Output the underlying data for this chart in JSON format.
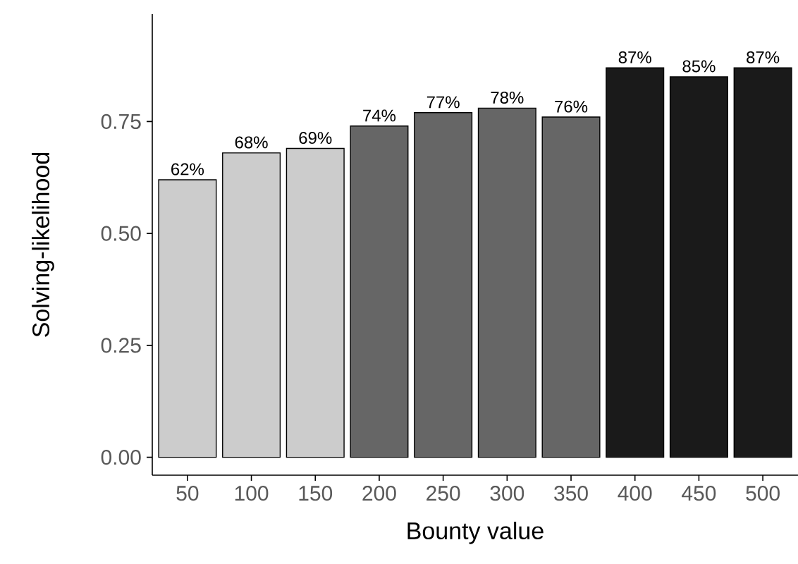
{
  "chart_data": {
    "type": "bar",
    "xlabel": "Bounty value",
    "ylabel": "Solving-likelihood",
    "categories": [
      "50",
      "100",
      "150",
      "200",
      "250",
      "300",
      "350",
      "400",
      "450",
      "500"
    ],
    "values": [
      0.62,
      0.68,
      0.69,
      0.74,
      0.77,
      0.78,
      0.76,
      0.87,
      0.85,
      0.87
    ],
    "value_labels": [
      "62%",
      "68%",
      "69%",
      "74%",
      "77%",
      "78%",
      "76%",
      "87%",
      "85%",
      "87%"
    ],
    "colors": [
      "#cccccc",
      "#cccccc",
      "#cccccc",
      "#666666",
      "#666666",
      "#666666",
      "#666666",
      "#1a1a1a",
      "#1a1a1a",
      "#1a1a1a"
    ],
    "ylim": [
      -0.04,
      0.99
    ],
    "yticks": [
      {
        "value": 0,
        "label": "0.00"
      },
      {
        "value": 0.25,
        "label": "0.25"
      },
      {
        "value": 0.5,
        "label": "0.50"
      },
      {
        "value": 0.75,
        "label": "0.75"
      }
    ],
    "grid": false
  }
}
